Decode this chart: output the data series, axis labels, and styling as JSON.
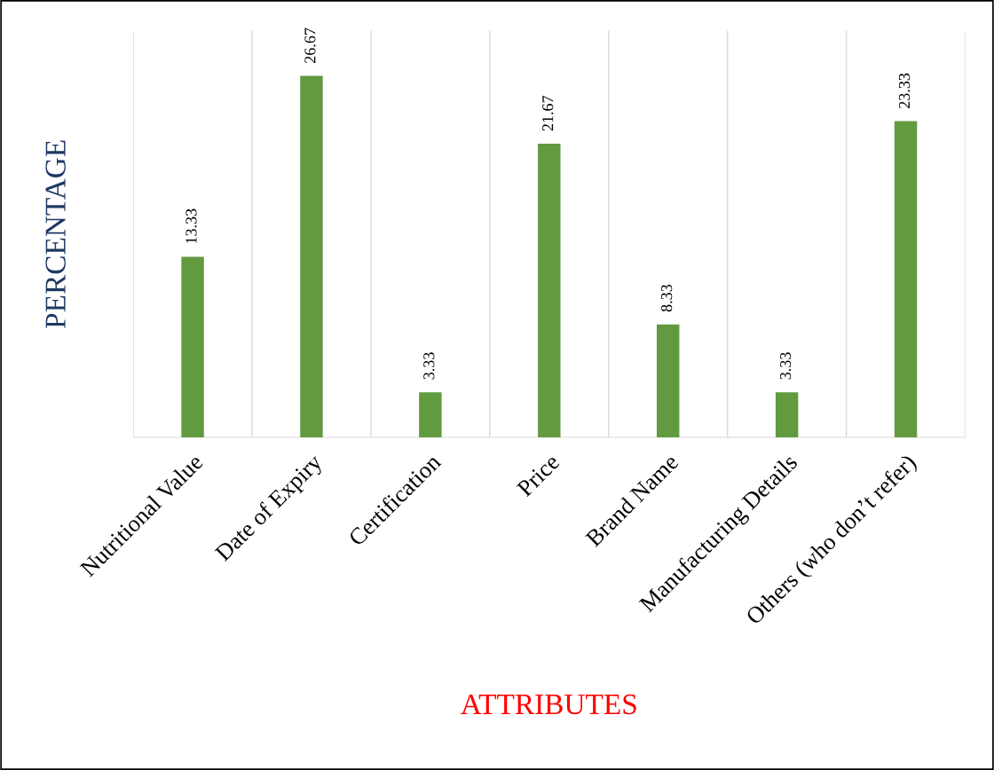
{
  "chart_data": {
    "type": "bar",
    "xlabel": "ATTRIBUTES",
    "ylabel": "PERCENTAGE",
    "categories": [
      "Nutritional Value",
      "Date of Expiry",
      "Certification",
      "Price",
      "Brand Name",
      "Manufacturing Details",
      "Others (who don’t refer)"
    ],
    "values": [
      13.33,
      26.67,
      3.33,
      21.67,
      8.33,
      3.33,
      23.33
    ],
    "color": "#629a3f",
    "data_labels": true,
    "ylim": [
      0,
      30
    ],
    "grid": "x",
    "tick_labels": "x",
    "legend": false
  }
}
